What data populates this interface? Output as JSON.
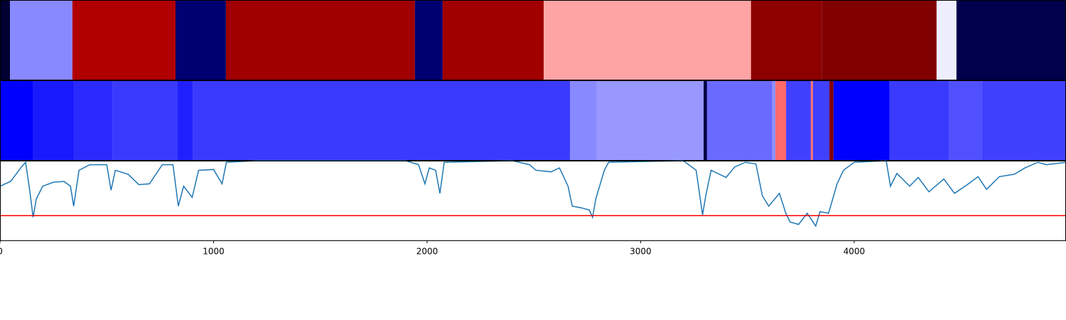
{
  "chart_data": [
    {
      "type": "segments",
      "xlim": [
        0,
        4992
      ],
      "bins": [
        0,
        47,
        339,
        822,
        1058,
        1943,
        2073,
        2546,
        3517,
        3850,
        4386,
        4479,
        4992
      ],
      "colors": [
        "#000033",
        "#8888ff",
        "#b00000",
        "#000070",
        "#a00000",
        "#000070",
        "#a00000",
        "#ffa4a4",
        "#8c0000",
        "#800000",
        "#eeeeff",
        "#00004c"
      ]
    },
    {
      "type": "segments",
      "xlim": [
        0,
        4992
      ],
      "bins": [
        0,
        156,
        349,
        526,
        832,
        902,
        2669,
        2795,
        3295,
        3311,
        3617,
        3631,
        3681,
        3797,
        3807,
        3884,
        3903,
        4166,
        4443,
        4599,
        4992
      ],
      "colors": [
        "#0000ff",
        "#1a1aff",
        "#2a2aff",
        "#3a3aff",
        "#2020ff",
        "#3a3aff",
        "#8888ff",
        "#9898ff",
        "#000044",
        "#6a6aff",
        "#9090ff",
        "#ff6a6a",
        "#4040ff",
        "#ff7070",
        "#4040ff",
        "#800000",
        "#0000ff",
        "#3a3aff",
        "#5050ff",
        "#4040ff"
      ]
    },
    {
      "type": "line",
      "xlim": [
        0,
        4992
      ],
      "ylim": [
        0,
        1
      ],
      "xticks": [
        0,
        1000,
        2000,
        3000,
        4000
      ],
      "color": "#1f77b4",
      "hline": 0.31,
      "hline_color": "#ff0000",
      "x": [
        0,
        50,
        100,
        120,
        140,
        155,
        170,
        200,
        250,
        300,
        330,
        345,
        370,
        420,
        500,
        520,
        540,
        600,
        650,
        700,
        760,
        810,
        835,
        860,
        900,
        930,
        1000,
        1040,
        1060,
        1200,
        1900,
        1960,
        1990,
        2010,
        2040,
        2060,
        2080,
        2400,
        2480,
        2510,
        2580,
        2620,
        2660,
        2680,
        2720,
        2760,
        2775,
        2790,
        2830,
        2850,
        3200,
        3260,
        3290,
        3305,
        3330,
        3400,
        3440,
        3490,
        3540,
        3570,
        3600,
        3650,
        3680,
        3700,
        3740,
        3780,
        3820,
        3840,
        3880,
        3920,
        3950,
        4000,
        4150,
        4170,
        4200,
        4260,
        4300,
        4350,
        4420,
        4470,
        4530,
        4580,
        4620,
        4680,
        4750,
        4800,
        4860,
        4900,
        4992
      ],
      "values": [
        0.68,
        0.74,
        0.92,
        0.98,
        0.61,
        0.29,
        0.52,
        0.68,
        0.73,
        0.74,
        0.68,
        0.43,
        0.88,
        0.95,
        0.95,
        0.63,
        0.88,
        0.83,
        0.7,
        0.71,
        0.95,
        0.95,
        0.43,
        0.68,
        0.54,
        0.88,
        0.89,
        0.71,
        0.98,
        1.0,
        1.0,
        0.95,
        0.71,
        0.91,
        0.88,
        0.59,
        0.98,
        1.0,
        0.95,
        0.88,
        0.86,
        0.91,
        0.68,
        0.43,
        0.41,
        0.38,
        0.29,
        0.52,
        0.88,
        0.98,
        1.0,
        0.88,
        0.32,
        0.56,
        0.88,
        0.79,
        0.92,
        0.98,
        0.96,
        0.56,
        0.43,
        0.59,
        0.34,
        0.23,
        0.2,
        0.34,
        0.18,
        0.36,
        0.34,
        0.71,
        0.88,
        0.98,
        1.0,
        0.68,
        0.84,
        0.68,
        0.79,
        0.61,
        0.77,
        0.59,
        0.7,
        0.8,
        0.64,
        0.8,
        0.83,
        0.91,
        0.98,
        0.95,
        0.98
      ]
    }
  ]
}
